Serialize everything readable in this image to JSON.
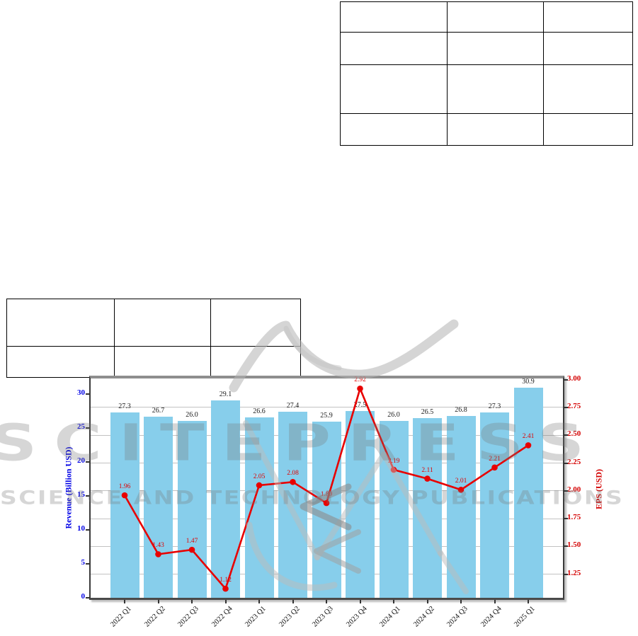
{
  "page": {
    "background": "#ffffff"
  },
  "watermark": {
    "brand": "SCITEPRESS",
    "tagline": "SCIENCE AND TECHNOLOGY PUBLICATIONS",
    "color": "#767676"
  },
  "tables": {
    "top_right": {
      "cols": 3,
      "rows": 4,
      "cells": [
        [
          "",
          "",
          ""
        ],
        [
          "",
          "",
          ""
        ],
        [
          "",
          "",
          ""
        ],
        [
          "",
          "",
          ""
        ]
      ]
    },
    "mid_left": {
      "cols": 3,
      "rows": 2,
      "cells": [
        [
          "",
          "",
          ""
        ],
        [
          "",
          "",
          ""
        ]
      ]
    }
  },
  "chart_data": {
    "type": "bar+line (dual axis)",
    "categories": [
      "2022 Q1",
      "2022 Q2",
      "2022 Q3",
      "2022 Q4",
      "2023 Q1",
      "2023 Q2",
      "2023 Q3",
      "2023 Q4",
      "2024 Q1",
      "2024 Q2",
      "2024 Q3",
      "2024 Q4",
      "2025 Q1"
    ],
    "series": [
      {
        "name": "Revenue",
        "type": "bar",
        "axis": "left",
        "color": "#87CEEB",
        "values": [
          27.3,
          26.7,
          26.0,
          29.1,
          26.6,
          27.4,
          25.9,
          27.5,
          26.0,
          26.5,
          26.8,
          27.3,
          30.9
        ],
        "labels": [
          "27.3",
          "26.7",
          "26.0",
          "29.1",
          "26.6",
          "27.4",
          "25.9",
          "27.5",
          "26.0",
          "26.5",
          "26.8",
          "27.3",
          "30.9"
        ]
      },
      {
        "name": "EPS",
        "type": "line",
        "axis": "right",
        "color": "#e80000",
        "marker": "circle",
        "values": [
          1.96,
          1.43,
          1.47,
          1.12,
          2.05,
          2.08,
          1.89,
          2.92,
          2.19,
          2.11,
          2.01,
          2.21,
          2.41
        ],
        "labels": [
          "1.96",
          "1.43",
          "1.47",
          "1.12",
          "2.05",
          "2.08",
          "1.89",
          "2.92",
          "2.19",
          "2.11",
          "2.01",
          "2.21",
          "2.41"
        ]
      }
    ],
    "left_axis": {
      "label": "Revenue (Billion USD)",
      "color": "#0000e6",
      "tick_labels": [
        "0",
        "5",
        "10",
        "15",
        "20",
        "25",
        "30"
      ],
      "tick_values": [
        0,
        5,
        10,
        15,
        20,
        25,
        30
      ],
      "range": [
        0,
        32.3
      ]
    },
    "right_axis": {
      "label": "EPS (USD)",
      "color": "#d40000",
      "tick_labels": [
        "3.00",
        "2.75",
        "2.50",
        "2.25",
        "2.00",
        "1.75",
        "1.50",
        "1.25"
      ],
      "tick_values": [
        3.0,
        2.75,
        2.5,
        2.25,
        2.0,
        1.75,
        1.5,
        1.25
      ],
      "range": [
        1.04,
        3.01
      ]
    },
    "grid": {
      "horizontal": true,
      "at": "right-axis ticks",
      "color": "#c2c2c2"
    },
    "legend": "none",
    "title": ""
  }
}
